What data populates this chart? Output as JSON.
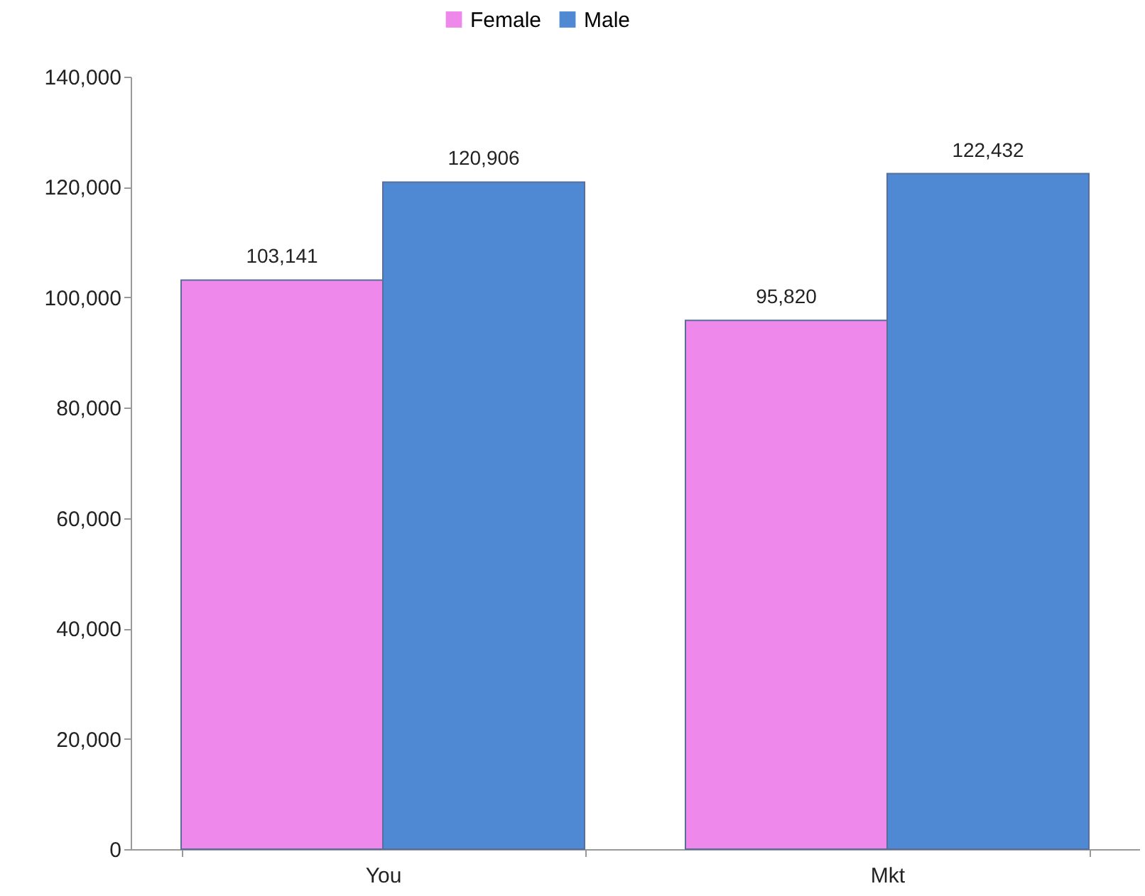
{
  "chart_data": {
    "type": "bar",
    "categories": [
      "You",
      "Mkt"
    ],
    "series": [
      {
        "name": "Female",
        "color": "#ee88ea",
        "values": [
          103141,
          95820
        ],
        "value_labels": [
          "103,141",
          "95,820"
        ]
      },
      {
        "name": "Male",
        "color": "#4f88d3",
        "values": [
          120906,
          122432
        ],
        "value_labels": [
          "120,906",
          "122,432"
        ]
      }
    ],
    "ylim": [
      0,
      140000
    ],
    "yticks": [
      0,
      {
        "value": 20000,
        "label": "20,000"
      },
      {
        "value": 40000,
        "label": "40,000"
      },
      {
        "value": 60000,
        "label": "60,000"
      },
      {
        "value": 80000,
        "label": "80,000"
      },
      {
        "value": 100000,
        "label": "100,000"
      },
      {
        "value": 120000,
        "label": "120,000"
      },
      {
        "value": 140000,
        "label": "140,000"
      }
    ],
    "legend": "top"
  }
}
